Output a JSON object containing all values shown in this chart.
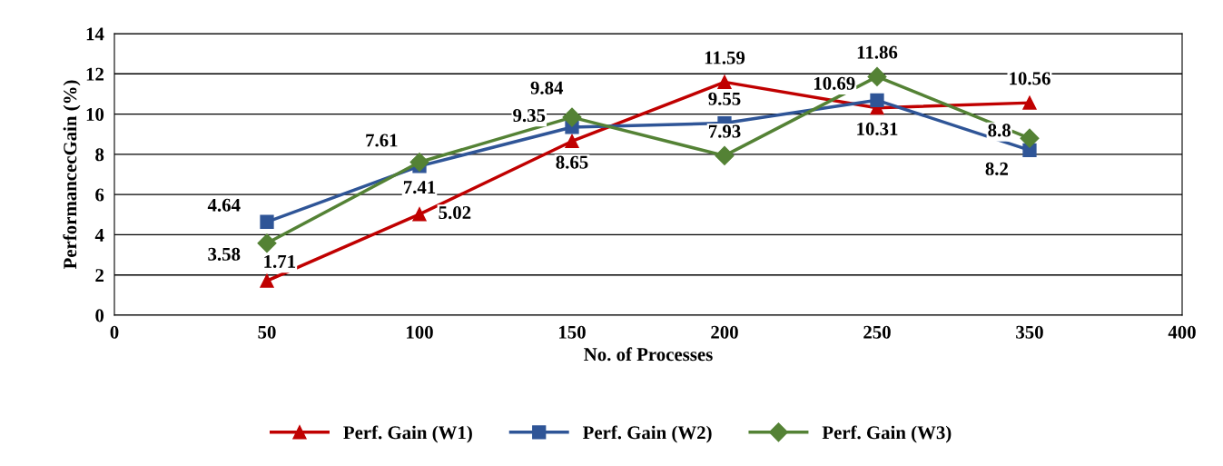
{
  "chart_data": {
    "type": "line",
    "xlabel": "No. of Processes",
    "ylabel": "PerformancecGain (%)",
    "categories": [
      "0",
      "50",
      "100",
      "150",
      "200",
      "250",
      "350",
      "400"
    ],
    "series": [
      {
        "name": "Perf. Gain (W1)",
        "color": "#c00000",
        "marker": "triangle",
        "values": [
          null,
          1.71,
          5.02,
          8.65,
          11.59,
          10.31,
          10.56,
          null
        ]
      },
      {
        "name": "Perf. Gain (W2)",
        "color": "#2f5597",
        "marker": "square",
        "values": [
          null,
          4.64,
          7.41,
          9.35,
          9.55,
          10.69,
          8.2,
          null
        ]
      },
      {
        "name": "Perf. Gain (W3)",
        "color": "#548235",
        "marker": "diamond",
        "values": [
          null,
          3.58,
          7.61,
          9.84,
          7.93,
          11.86,
          8.8,
          null
        ]
      }
    ],
    "ylim": [
      0,
      14
    ],
    "yticks": [
      0,
      2,
      4,
      6,
      8,
      10,
      12,
      14
    ],
    "grid": "y",
    "legend": "bottom",
    "data_labels": true,
    "line_style": "solid"
  }
}
